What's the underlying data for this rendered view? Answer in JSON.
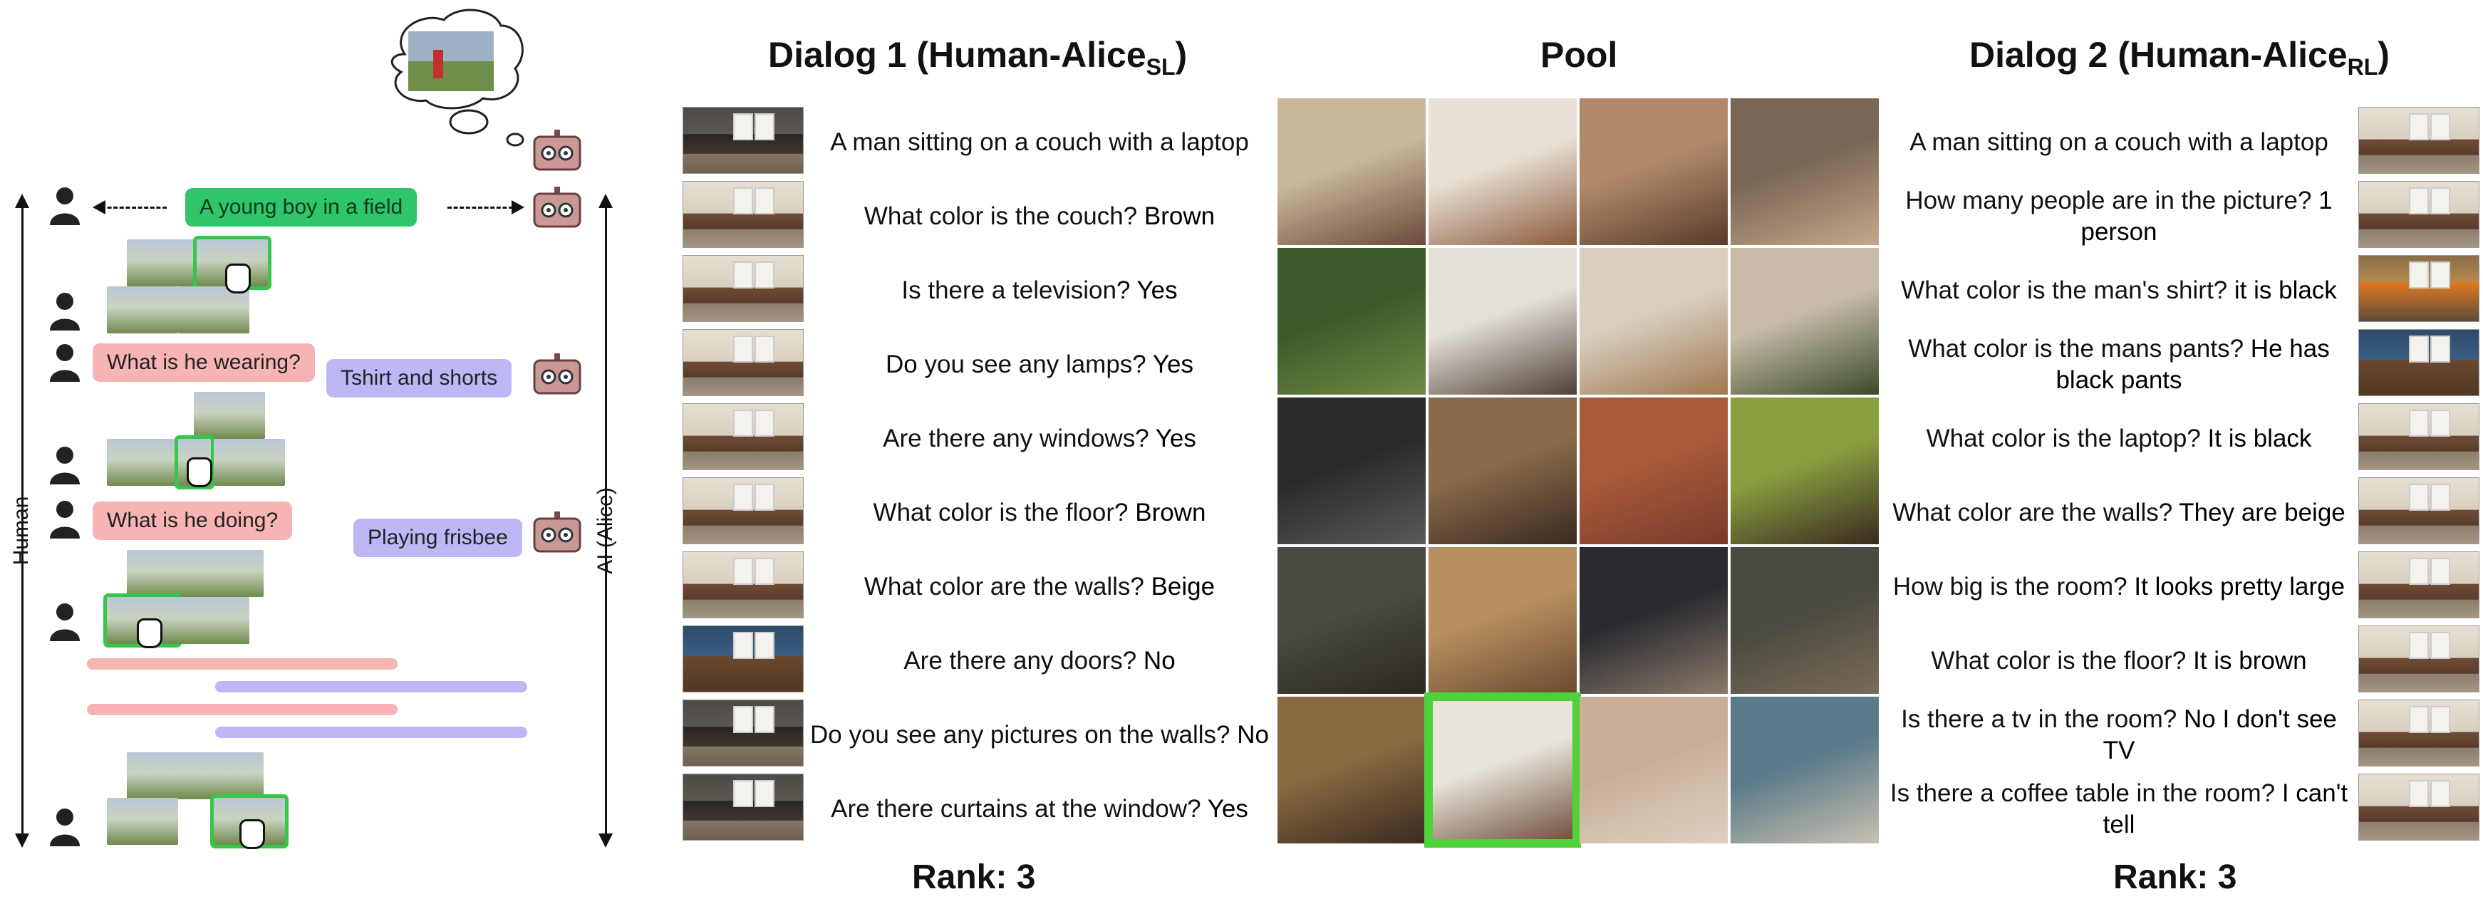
{
  "left": {
    "axis_left_label": "Human",
    "axis_right_label": "AI (Alice)",
    "caption_bubble": "A young boy in a field",
    "q1": "What is he wearing?",
    "a1": "Tshirt and shorts",
    "q2": "What is he doing?",
    "a2": "Playing frisbee"
  },
  "dialog1": {
    "title_main": "Dialog 1 (Human-Alice",
    "title_sub": "SL",
    "title_end": ")",
    "rows": [
      {
        "q": "A man sitting on a couch with a laptop",
        "a": ""
      },
      {
        "q": "What color is the couch?",
        "a": "Brown"
      },
      {
        "q": "Is there a television?",
        "a": "Yes"
      },
      {
        "q": "Do you see any lamps?",
        "a": "Yes"
      },
      {
        "q": "Are there any windows?",
        "a": "Yes"
      },
      {
        "q": "What color is the floor?",
        "a": "Brown"
      },
      {
        "q": "What color are the walls?",
        "a": "Beige"
      },
      {
        "q": "Are there any doors?",
        "a": "No"
      },
      {
        "q": "Do you see any pictures on the walls?",
        "a": "No"
      },
      {
        "q": "Are there curtains at the window?",
        "a": "Yes"
      }
    ],
    "rank": "Rank: 3"
  },
  "pool": {
    "title": "Pool"
  },
  "dialog2": {
    "title_main": "Dialog 2 (Human-Alice",
    "title_sub": "RL",
    "title_end": ")",
    "rows": [
      {
        "q": "A man sitting on a couch with a laptop",
        "a": ""
      },
      {
        "q": "How many people are in the picture?",
        "a": "1 person"
      },
      {
        "q": "What color is the man's shirt?",
        "a": "it is black"
      },
      {
        "q": "What color is the mans pants?",
        "a": "He has black pants"
      },
      {
        "q": "What color is the laptop?",
        "a": "It is black"
      },
      {
        "q": "What color are the walls?",
        "a": "They are beige"
      },
      {
        "q": "How big is the room?",
        "a": "It looks pretty large"
      },
      {
        "q": "What color is the floor?",
        "a": "It is brown"
      },
      {
        "q": "Is there a tv in the room?",
        "a": "No I don't see TV"
      },
      {
        "q": "Is there a coffee table in the room?",
        "a": "I can't tell"
      }
    ],
    "rank": "Rank: 3"
  },
  "colors": {
    "green": "#2fc56a",
    "pink": "#f7b4b4",
    "lavender": "#bdb8f5",
    "select": "#4fd13a"
  }
}
